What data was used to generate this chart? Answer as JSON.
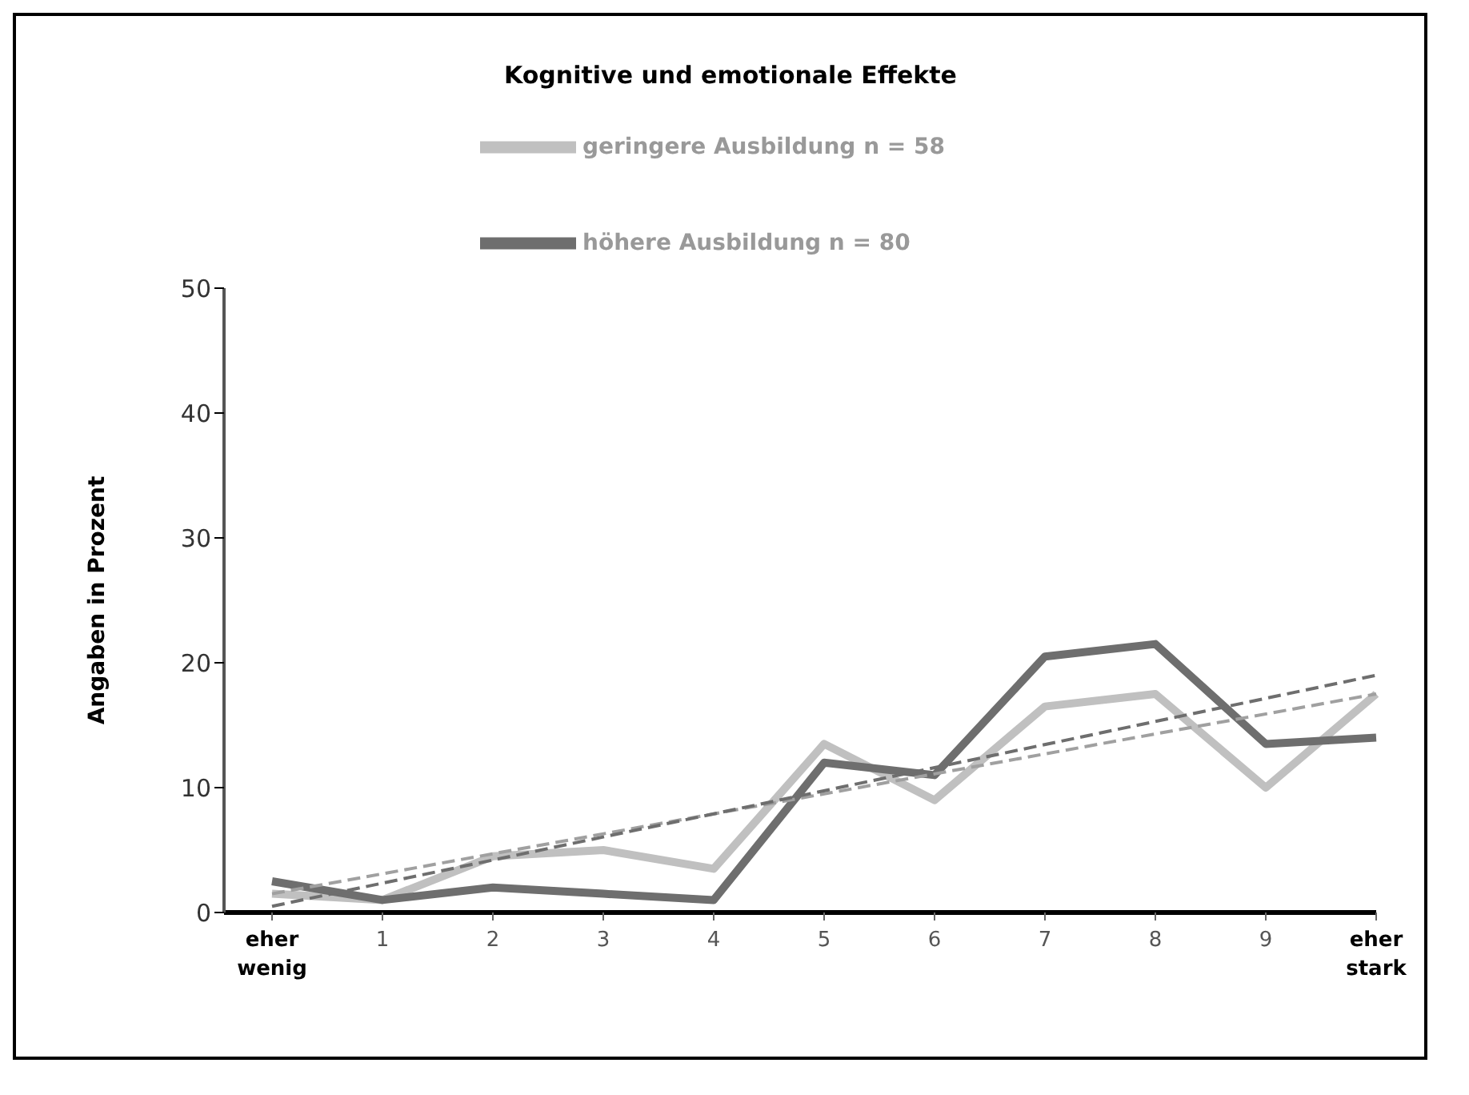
{
  "chart_data": {
    "type": "line",
    "title": "Kognitive und emotionale Effekte",
    "ylabel": "Angaben in Prozent",
    "categories": [
      "eher wenig",
      "1",
      "2",
      "3",
      "4",
      "5",
      "6",
      "7",
      "8",
      "9",
      "eher stark"
    ],
    "series": [
      {
        "name": "geringere Ausbildung n = 58",
        "color": "#c0c0c0",
        "values": [
          1.5,
          1,
          4.5,
          5,
          3.5,
          13.5,
          9,
          16.5,
          17.5,
          10,
          17.5
        ]
      },
      {
        "name": "höhere Ausbildung n = 80",
        "color": "#6e6e6e",
        "values": [
          2.5,
          1,
          2,
          1.5,
          1,
          12,
          11,
          20.5,
          21.5,
          13.5,
          14
        ]
      },
      {
        "color": "#a0a0a0",
        "line_style": "dashed",
        "values": [
          1.5,
          null,
          null,
          null,
          null,
          null,
          null,
          null,
          null,
          null,
          17.5
        ]
      },
      {
        "color": "#6e6e6e",
        "line_style": "dashed",
        "values": [
          0.5,
          null,
          null,
          null,
          null,
          null,
          null,
          null,
          null,
          null,
          19
        ]
      }
    ],
    "ylim": [
      0,
      50
    ],
    "yticks": [
      0,
      10,
      20,
      30,
      40,
      50
    ],
    "grid": false,
    "legend": "top",
    "marker": "none",
    "line_style": "solid"
  }
}
